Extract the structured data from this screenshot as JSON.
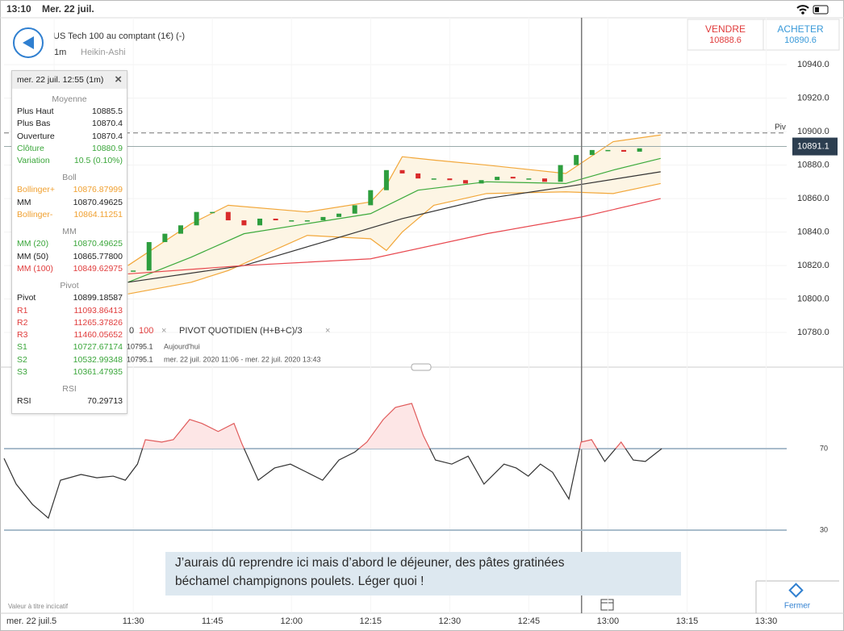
{
  "status_bar": {
    "time": "13:10",
    "date": "Mer. 22 juil."
  },
  "header": {
    "instrument": "US Tech 100 au comptant (1€) (-)",
    "interval": "1m",
    "chart_style": "Heikin-Ashi"
  },
  "quote": {
    "sell_label": "VENDRE",
    "sell": 10888.6,
    "buy_label": "ACHETER",
    "buy": 10890.6
  },
  "tooltip": {
    "title": "mer. 22 juil. 12:55 (1m)",
    "sections": [
      {
        "title": "Moyenne",
        "rows": [
          {
            "label": "Plus Haut",
            "value": 10885.5
          },
          {
            "label": "Plus Bas",
            "value": 10870.4
          },
          {
            "label": "Ouverture",
            "value": 10870.4
          },
          {
            "label": "Clôture",
            "value": 10880.9,
            "color": "green"
          },
          {
            "label": "Variation",
            "value": "10.5 (0.10%)",
            "color": "green"
          }
        ]
      },
      {
        "title": "Boll",
        "rows": [
          {
            "label": "Bollinger+",
            "value": 10876.87999,
            "color": "orange"
          },
          {
            "label": "MM",
            "value": 10870.49625
          },
          {
            "label": "Bollinger-",
            "value": 10864.11251,
            "color": "orange"
          }
        ]
      },
      {
        "title": "MM",
        "rows": [
          {
            "label": "MM (20)",
            "value": 10870.49625,
            "color": "green"
          },
          {
            "label": "MM (50)",
            "value": "10865.77800"
          },
          {
            "label": "MM (100)",
            "value": 10849.62975,
            "color": "red"
          }
        ]
      },
      {
        "title": "Pivot",
        "rows": [
          {
            "label": "Pivot",
            "value": 10899.18587
          },
          {
            "label": "R1",
            "value": 11093.86413,
            "color": "red"
          },
          {
            "label": "R2",
            "value": 11265.37826,
            "color": "red"
          },
          {
            "label": "R3",
            "value": 11460.05652,
            "color": "red"
          },
          {
            "label": "S1",
            "value": 10727.67174,
            "color": "green"
          },
          {
            "label": "S2",
            "value": 10532.99348,
            "color": "green"
          },
          {
            "label": "S3",
            "value": 10361.47935,
            "color": "green"
          }
        ]
      },
      {
        "title": "RSI",
        "rows": [
          {
            "label": "RSI",
            "value": 70.29713
          }
        ]
      }
    ]
  },
  "indicator_overlay": {
    "items": [
      "0",
      "100",
      "PIVOT QUOTIDIEN (H+B+C)/3"
    ],
    "rows": [
      {
        "value": 10795.1,
        "text": "Aujourd'hui"
      },
      {
        "value": 10795.1,
        "text": "mer. 22 juil. 2020 11:06 - mer. 22 juil. 2020 13:43"
      }
    ]
  },
  "chart_data": [
    {
      "type": "candlestick",
      "xlim": [
        5.5,
        153.9
      ],
      "xticks": [
        {
          "value": 15,
          "label": "5"
        },
        {
          "value": 30,
          "label": "11:30"
        },
        {
          "value": 45,
          "label": "11:45"
        },
        {
          "value": 60,
          "label": "12:00"
        },
        {
          "value": 75,
          "label": "12:15"
        },
        {
          "value": 90,
          "label": "12:30"
        },
        {
          "value": 105,
          "label": "12:45"
        },
        {
          "value": 120,
          "label": "13:00"
        },
        {
          "value": 135,
          "label": "13:15"
        },
        {
          "value": 150,
          "label": "13:30"
        }
      ],
      "ylim": [
        10759.3,
        10968
      ],
      "yticks": [
        {
          "value": 10940,
          "label": "10940.0"
        },
        {
          "value": 10920,
          "label": "10920.0"
        },
        {
          "value": 10900,
          "label": "10900.0"
        },
        {
          "value": 10880,
          "label": "10880.0"
        },
        {
          "value": 10860,
          "label": "10860.0"
        },
        {
          "value": 10840,
          "label": "10840.0"
        },
        {
          "value": 10820,
          "label": "10820.0"
        },
        {
          "value": 10800,
          "label": "10800.0"
        },
        {
          "value": 10780,
          "label": "10780.0"
        }
      ],
      "candles": {
        "x": [
          30,
          33,
          36,
          39,
          42,
          45,
          48,
          51,
          54,
          57,
          60,
          63,
          66,
          69,
          72,
          75,
          78,
          81,
          84,
          87,
          90,
          93,
          96,
          99,
          102,
          105,
          108,
          111,
          114,
          117,
          120,
          123,
          126
        ],
        "values": [
          10817,
          10834,
          10839,
          10844,
          10852,
          10852,
          10847,
          10844,
          10848,
          10847,
          10847,
          10847,
          10849,
          10851,
          10856,
          10865,
          10877,
          10875,
          10872,
          10872,
          10871,
          10869,
          10871,
          10873,
          10872,
          10872,
          10870,
          10880,
          10886,
          10889,
          10889,
          10888,
          10890
        ],
        "up_color": "#2e9e3e",
        "down_color": "#d92b2b"
      },
      "bollinger": {
        "color": "#f2a73a",
        "fill": "#fdf5e4",
        "x": [
          29,
          41,
          48,
          63,
          75,
          78,
          81,
          87,
          97,
          112,
          121,
          130
        ],
        "upper": [
          10820,
          10845,
          10856,
          10852,
          10858,
          10868,
          10885,
          10883,
          10880,
          10875,
          10894,
          10898
        ],
        "lower": [
          10803,
          10810,
          10817,
          10838,
          10836,
          10829,
          10840,
          10856,
          10863,
          10864,
          10863,
          10869
        ]
      },
      "series": [
        {
          "color": "#3caa3c",
          "x": [
            29,
            41,
            51,
            63,
            75,
            84,
            97,
            112,
            121,
            130
          ],
          "values": [
            10810,
            10825,
            10839,
            10845,
            10851,
            10865,
            10870,
            10869,
            10877,
            10884
          ]
        },
        {
          "color": "#333333",
          "x": [
            29,
            51,
            66,
            81,
            97,
            112,
            130
          ],
          "values": [
            10810,
            10820,
            10834,
            10848,
            10860,
            10867,
            10876
          ]
        },
        {
          "color": "#e8484f",
          "x": [
            29,
            51,
            75,
            97,
            115,
            130
          ],
          "values": [
            10815,
            10820,
            10824,
            10839,
            10849,
            10860
          ]
        }
      ],
      "pivot_label": "Piv",
      "last_price": 10891.1,
      "crosshair": 115
    },
    {
      "type": "line",
      "xlim": [
        5.5,
        153.9
      ],
      "ylim": [
        -10.8,
        108.8
      ],
      "yticks": [
        70,
        30
      ],
      "color": "#333333",
      "above_color": "#e05a5a",
      "above_fill": "#fde6e6",
      "x": [
        5.5,
        7.8,
        10.9,
        13.9,
        16.2,
        20.1,
        23.1,
        26.2,
        28.5,
        30.8,
        32.3,
        35.4,
        37.6,
        40.7,
        43.0,
        46.1,
        49.1,
        50.6,
        53.7,
        56.8,
        59.8,
        62.9,
        65.9,
        69.0,
        72.0,
        74.3,
        77.4,
        79.7,
        82.8,
        85.0,
        87.3,
        90.4,
        93.5,
        96.5,
        100.3,
        102.6,
        104.9,
        107.2,
        109.5,
        112.6,
        114.9,
        116.9,
        119.4,
        122.5,
        124.8,
        127.1,
        130.2
      ],
      "values": [
        65.2,
        52.6,
        42.6,
        35.9,
        54.5,
        57.3,
        55.7,
        56.5,
        54.5,
        62.4,
        74.4,
        73.2,
        74.4,
        84.3,
        82.4,
        78.4,
        82.4,
        72.4,
        54.5,
        60.5,
        62.4,
        58.4,
        54.5,
        64.4,
        68.3,
        73.2,
        84.3,
        90.2,
        92.2,
        76.4,
        64.4,
        62.4,
        66.3,
        52.6,
        62.4,
        60.5,
        56.5,
        62.4,
        58.4,
        45.3,
        73.2,
        74.4,
        63.7,
        73.2,
        64.4,
        63.7,
        70
      ]
    }
  ],
  "comment": {
    "lines": [
      "J’aurais dû reprendre ici mais d’abord le déjeuner, des pâtes gratinées",
      "béchamel champignons poulets. Léger quoi !"
    ]
  },
  "footer": {
    "disclaimer": "Valeur à titre indicatif",
    "date": "mer. 22 juil.",
    "close_button": "Fermer"
  }
}
